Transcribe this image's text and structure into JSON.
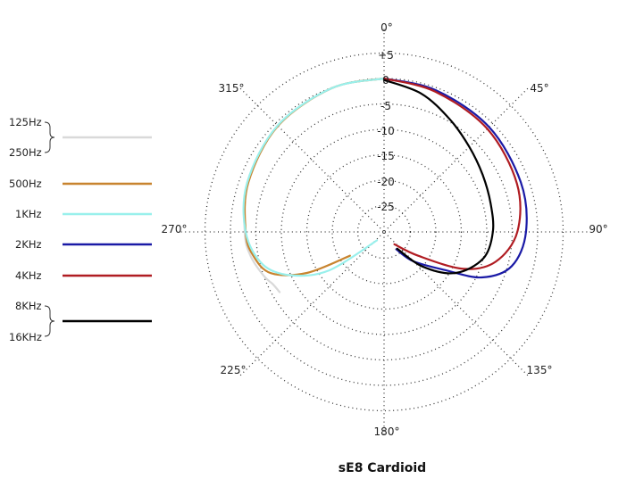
{
  "chart_data": {
    "type": "polar",
    "title": "sE8  Cardioid",
    "angle_labels": [
      "0°",
      "45°",
      "90°",
      "135°",
      "180°",
      "225°",
      "270°",
      "315°"
    ],
    "ring_labels": [
      "+5",
      "0",
      "-5",
      "-10",
      "-15",
      "-20",
      "-25"
    ],
    "ring_values": [
      5,
      0,
      -5,
      -10,
      -15,
      -20,
      -25
    ],
    "r_range": [
      -30,
      5
    ],
    "legend_position": "left",
    "colors": {
      "125Hz/250Hz": "#d9d9d9",
      "500Hz": "#c8842f",
      "1KHz": "#99f0ec",
      "2KHz": "#1a1aa6",
      "4KHz": "#b01c22",
      "8KHz/16KHz": "#000000"
    },
    "legend": [
      {
        "labels": [
          "125Hz",
          "250Hz"
        ],
        "color": "#d9d9d9"
      },
      {
        "labels": [
          "500Hz"
        ],
        "color": "#c8842f"
      },
      {
        "labels": [
          "1KHz"
        ],
        "color": "#99f0ec"
      },
      {
        "labels": [
          "2KHz"
        ],
        "color": "#1a1aa6"
      },
      {
        "labels": [
          "4KHz"
        ],
        "color": "#b01c22"
      },
      {
        "labels": [
          "8KHz",
          "16KHz"
        ],
        "color": "#000000"
      }
    ],
    "series": [
      {
        "name": "125Hz/250Hz",
        "color": "#d9d9d9",
        "points": [
          [
            -120,
            -6.5
          ],
          [
            -115,
            -6.0
          ],
          [
            -110,
            -5.0
          ],
          [
            -100,
            -3.5
          ],
          [
            -90,
            -2.8
          ],
          [
            -70,
            -1.6
          ],
          [
            -45,
            -0.6
          ],
          [
            -20,
            -0.1
          ],
          [
            0,
            0
          ]
        ]
      },
      {
        "name": "500Hz",
        "color": "#c8842f",
        "points": [
          [
            -125,
            -22
          ],
          [
            -118,
            -13
          ],
          [
            -110,
            -6.5
          ],
          [
            -100,
            -4.0
          ],
          [
            -90,
            -3.0
          ],
          [
            -70,
            -1.8
          ],
          [
            -45,
            -0.7
          ],
          [
            -20,
            -0.1
          ],
          [
            0,
            0
          ]
        ]
      },
      {
        "name": "1KHz",
        "color": "#99f0ec",
        "points": [
          [
            -140,
            -28
          ],
          [
            -125,
            -17
          ],
          [
            -115,
            -10
          ],
          [
            -105,
            -5.5
          ],
          [
            -90,
            -3.0
          ],
          [
            -70,
            -1.6
          ],
          [
            -45,
            -0.6
          ],
          [
            -20,
            -0.1
          ],
          [
            0,
            0
          ]
        ]
      },
      {
        "name": "2KHz",
        "color": "#1a1aa6",
        "points": [
          [
            0,
            0
          ],
          [
            20,
            -0.5
          ],
          [
            45,
            -1.0
          ],
          [
            70,
            -1.6
          ],
          [
            90,
            -2.3
          ],
          [
            105,
            -4.2
          ],
          [
            115,
            -9.0
          ],
          [
            122,
            -16.0
          ],
          [
            135,
            -22.0
          ],
          [
            145,
            -26
          ]
        ]
      },
      {
        "name": "4KHz",
        "color": "#b01c22",
        "points": [
          [
            0,
            0
          ],
          [
            20,
            -0.8
          ],
          [
            45,
            -1.5
          ],
          [
            70,
            -2.4
          ],
          [
            90,
            -4.0
          ],
          [
            105,
            -7.5
          ],
          [
            115,
            -13
          ],
          [
            125,
            -22
          ],
          [
            140,
            -27
          ]
        ]
      },
      {
        "name": "8KHz/16KHz",
        "color": "#000000",
        "points": [
          [
            0,
            -0.3
          ],
          [
            15,
            -2.0
          ],
          [
            30,
            -4.5
          ],
          [
            45,
            -6.5
          ],
          [
            60,
            -7.8
          ],
          [
            75,
            -8.5
          ],
          [
            90,
            -8.8
          ],
          [
            105,
            -10
          ],
          [
            120,
            -14
          ],
          [
            132,
            -20
          ],
          [
            142,
            -26
          ]
        ]
      }
    ]
  }
}
